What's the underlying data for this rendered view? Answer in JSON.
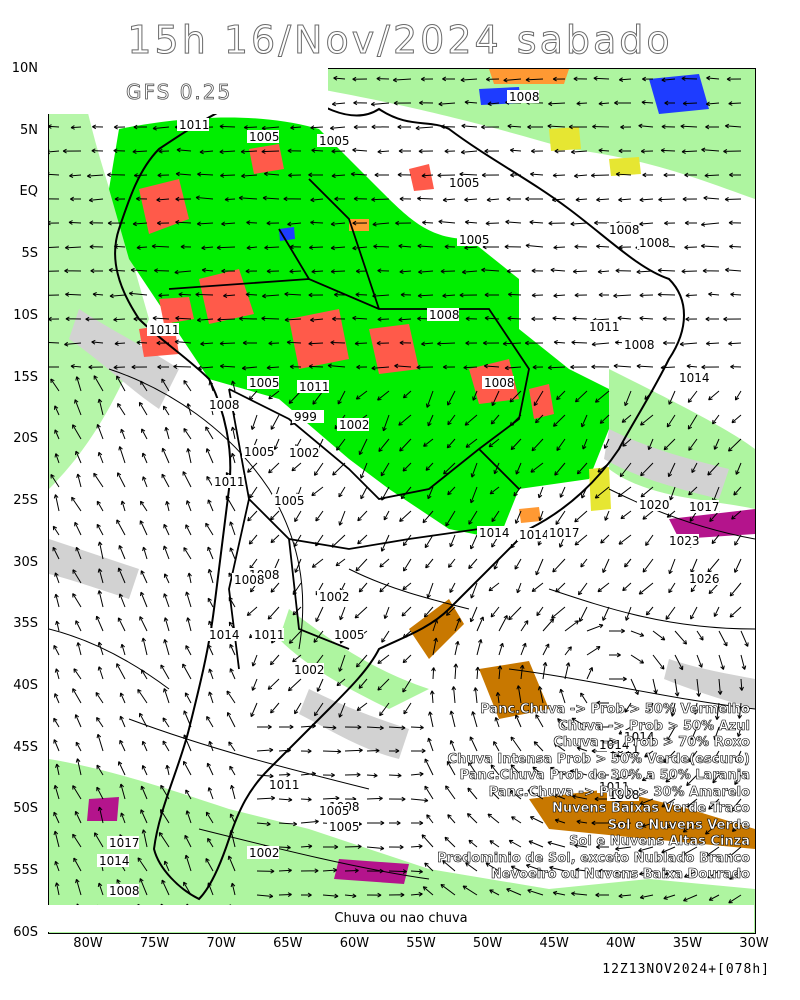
{
  "title": "15h 16/Nov/2024 sabado",
  "model_label": "GFS 0.25",
  "footer_label": "Chuva ou nao chuva",
  "run_label": "12Z13NOV2024+[078h]",
  "lat_ticks": [
    "10N",
    "5N",
    "EQ",
    "5S",
    "10S",
    "15S",
    "20S",
    "25S",
    "30S",
    "35S",
    "40S",
    "45S",
    "50S",
    "55S",
    "60S"
  ],
  "lon_ticks": [
    "80W",
    "75W",
    "70W",
    "65W",
    "60W",
    "55W",
    "50W",
    "45W",
    "40W",
    "35W",
    "30W"
  ],
  "legend": [
    "Panc.Chuva -> Prob > 50% Vermelho",
    "Chuva -> Prob > 50% Azul",
    "Chuva -> Prob > 70% Roxo",
    "Chuva Intensa Prob > 50% Verde(escuro)",
    "Panc.Chuva Prob de 30% a 50% Laranja",
    "Panc.Chuva -> Prob > 30% Amarelo",
    "Nuvens Baixas Verde Traco",
    "Sol e Nuvens Verde",
    "Sol e Nuvens Altas Cinza",
    "Predominio de Sol, exceto Nublado Branco",
    "Nevoeiro ou Nuvens Baixa Dourado"
  ],
  "isobar_labels": [
    "1008",
    "1011",
    "1005",
    "1005",
    "1005",
    "1008",
    "1005",
    "1008",
    "1008",
    "1011",
    "1008",
    "1014",
    "1011",
    "1008",
    "1017",
    "1014",
    "1005",
    "1011",
    "1008",
    "999",
    "1002",
    "1002",
    "1005",
    "1011",
    "1005",
    "1008",
    "1020",
    "1014",
    "1017",
    "1023",
    "1026",
    "1008",
    "1002",
    "1014",
    "1011",
    "1005",
    "1002",
    "1011",
    "1014",
    "1011",
    "1008",
    "1005",
    "1017",
    "1014",
    "1008",
    "1002",
    "1014",
    "1011",
    "1008",
    "1005"
  ],
  "colors": {
    "green_light": "#aef5a0",
    "green_bright": "#00ee00",
    "red": "#ff5a4a",
    "orange": "#ff9933",
    "yellow": "#e6e632",
    "blue": "#1e3cff",
    "purple": "#b4148c",
    "gold": "#c87800",
    "gray": "#d2d2d2"
  }
}
